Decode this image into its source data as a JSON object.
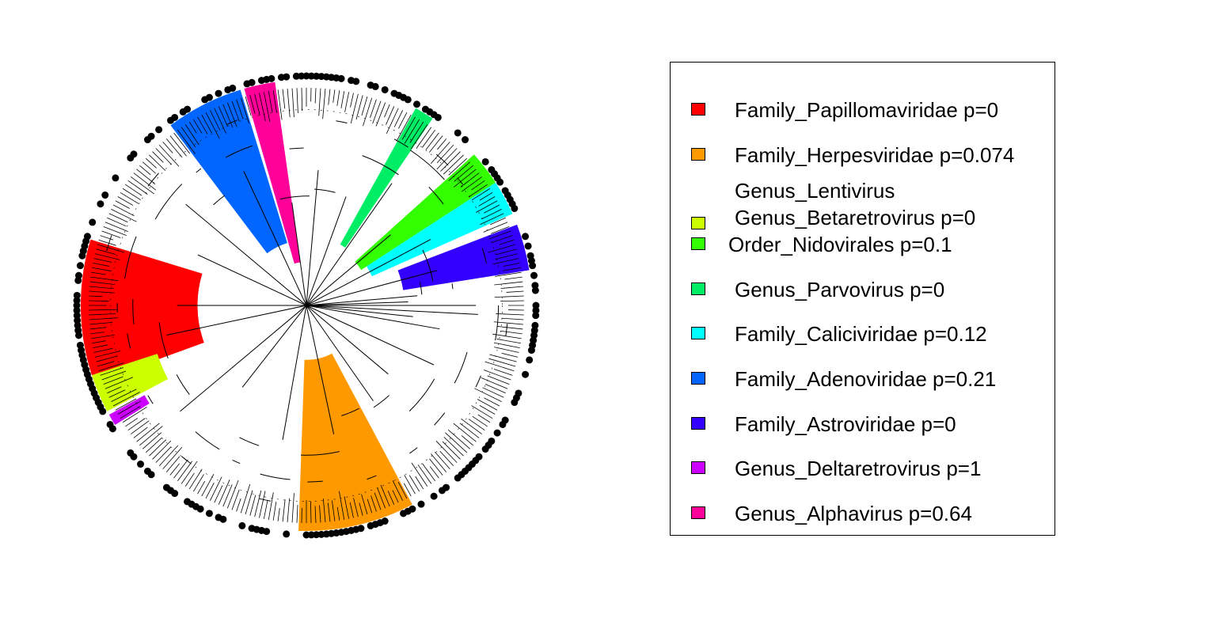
{
  "legend": {
    "items": [
      {
        "label": "Family_Papillomaviridae p=0",
        "color": "#ff0000"
      },
      {
        "label": "Family_Herpesviridae p=0.074",
        "color": "#ff9900"
      },
      {
        "label": "Genus_Lentivirus",
        "label2": "Genus_Betaretrovirus p=0",
        "color": "#ccff00"
      },
      {
        "label": "Order_Nidovirales p=0.1",
        "color": "#33ff00"
      },
      {
        "label": "Genus_Parvovirus p=0",
        "color": "#00ee66"
      },
      {
        "label": "Family_Caliciviridae p=0.12",
        "color": "#00ffff"
      },
      {
        "label": "Family_Adenoviridae p=0.21",
        "color": "#0066ff"
      },
      {
        "label": "Family_Astroviridae p=0",
        "color": "#3300ff"
      },
      {
        "label": "Genus_Deltaretrovirus p=1",
        "color": "#cc00ff"
      },
      {
        "label": "Genus_Alphavirus p=0.64",
        "color": "#ff0099"
      }
    ]
  },
  "tree": {
    "clades": [
      {
        "name": "Family_Papillomaviridae",
        "color": "#ff0000",
        "start_deg": 160,
        "end_deg": 197,
        "depth": 0.5
      },
      {
        "name": "Family_Herpesviridae",
        "color": "#ff9900",
        "start_deg": 62,
        "end_deg": 92,
        "depth": 0.25
      },
      {
        "name": "Genus_Lentivirus / Genus_Betaretrovirus",
        "color": "#ccff00",
        "start_deg": 152,
        "end_deg": 162,
        "depth": 0.72
      },
      {
        "name": "Order_Nidovirales",
        "color": "#33ff00",
        "start_deg": 318,
        "end_deg": 327,
        "depth": 0.3
      },
      {
        "name": "Genus_Parvovirus",
        "color": "#00ee66",
        "start_deg": 299,
        "end_deg": 304,
        "depth": 0.32
      },
      {
        "name": "Family_Caliciviridae",
        "color": "#00ffff",
        "start_deg": 327,
        "end_deg": 336,
        "depth": 0.33
      },
      {
        "name": "Family_Adenoviridae",
        "color": "#0066ff",
        "start_deg": 233,
        "end_deg": 253,
        "depth": 0.3
      },
      {
        "name": "Family_Astroviridae",
        "color": "#3300ff",
        "start_deg": 339,
        "end_deg": 351,
        "depth": 0.45
      },
      {
        "name": "Genus_Deltaretrovirus",
        "color": "#cc00ff",
        "start_deg": 148,
        "end_deg": 151,
        "depth": 0.85
      },
      {
        "name": "Genus_Alphavirus",
        "color": "#ff0099",
        "start_deg": 254,
        "end_deg": 262,
        "depth": 0.2
      }
    ]
  }
}
